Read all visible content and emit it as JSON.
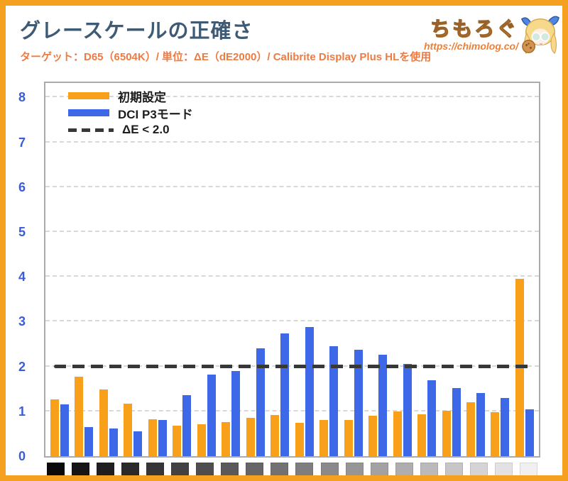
{
  "page": {
    "border_color": "#f5a01f",
    "background": "#ffffff"
  },
  "header": {
    "title": "グレースケールの正確さ",
    "title_color": "#3e5a75",
    "subtitle": "ターゲット：D65（6504K）/ 単位：ΔE（dE2000）/ Calibrite Display Plus HLを使用",
    "subtitle_color": "#ee7b41"
  },
  "logo": {
    "site_name": "ちもろぐ",
    "site_url": "https://chimolog.co/",
    "color": "#f0953f",
    "mascot": "mascot-girl-with-cookie-icon"
  },
  "axis": {
    "tick_color": "#3a5cd9"
  },
  "chart_data": {
    "type": "bar",
    "title": "グレースケールの正確さ",
    "xlabel": "",
    "ylabel": "ΔE (dE2000)",
    "ylim": [
      0,
      8.35
    ],
    "yticks": [
      0,
      1,
      2,
      3,
      4,
      5,
      6,
      7,
      8
    ],
    "grid": "horizontal-dashed",
    "legend_position": "top-left",
    "category_swatches": [
      "#0a0a0a",
      "#151515",
      "#1f1f1f",
      "#2a2a2a",
      "#363636",
      "#424242",
      "#4e4e4e",
      "#5a5a5a",
      "#666666",
      "#727272",
      "#7e7e7e",
      "#8a8a8a",
      "#969696",
      "#a2a2a2",
      "#aeaeae",
      "#bababa",
      "#c6c6c6",
      "#d4d4d4",
      "#e2e2e2",
      "#f0f0f0"
    ],
    "series": [
      {
        "name": "初期設定",
        "color": "#f9a01b",
        "values": [
          1.27,
          1.78,
          1.48,
          1.17,
          0.83,
          0.68,
          0.71,
          0.76,
          0.86,
          0.92,
          0.74,
          0.8,
          0.81,
          0.91,
          0.99,
          0.93,
          1.01,
          1.21,
          0.98,
          3.95
        ]
      },
      {
        "name": "DCI P3モード",
        "color": "#3d68e7",
        "values": [
          1.16,
          0.65,
          0.62,
          0.55,
          0.8,
          1.36,
          1.82,
          1.9,
          2.4,
          2.73,
          2.88,
          2.46,
          2.38,
          2.27,
          2.05,
          1.7,
          1.52,
          1.41,
          1.29,
          1.05
        ]
      }
    ],
    "reference_line": {
      "label": "ΔE < 2.0",
      "value": 2.0,
      "color": "#383838",
      "style": "dashed"
    }
  }
}
